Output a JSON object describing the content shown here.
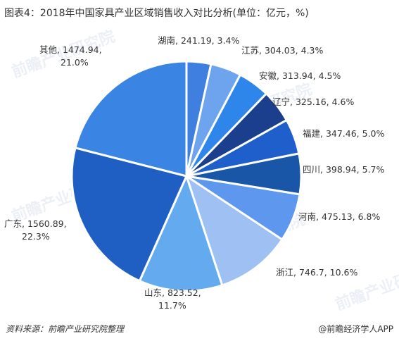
{
  "title": "图表4：2018年中国家具产业区域销售收入对比分析(单位：亿元，%)",
  "source": "资料来源：前瞻产业研究院整理",
  "credit": "@前瞻经济学人APP",
  "watermark": "前瞻产业研究院",
  "chart_data": {
    "type": "pie",
    "unit": "亿元",
    "slices": [
      {
        "label": "湖南",
        "value": 241.19,
        "percent": 3.4,
        "color": "#3f7fe0",
        "text": "湖南, 241.19, 3.4%"
      },
      {
        "label": "江苏",
        "value": 304.03,
        "percent": 4.3,
        "color": "#6ea3ee",
        "text": "江苏, 304.03, 4.3%"
      },
      {
        "label": "安徽",
        "value": 313.94,
        "percent": 4.5,
        "color": "#2f86ea",
        "text": "安徽, 313.94, 4.5%"
      },
      {
        "label": "辽宁",
        "value": 325.16,
        "percent": 4.6,
        "color": "#1b3f8c",
        "text": "辽宁, 325.16, 4.6%"
      },
      {
        "label": "福建",
        "value": 347.46,
        "percent": 5.0,
        "color": "#1f5fcc",
        "text": "福建, 347.46, 5.0%"
      },
      {
        "label": "四川",
        "value": 398.94,
        "percent": 5.7,
        "color": "#1a56a8",
        "text": "四川, 398.94, 5.7%"
      },
      {
        "label": "河南",
        "value": 475.13,
        "percent": 6.8,
        "color": "#5d98ee",
        "text": "河南, 475.13, 6.8%"
      },
      {
        "label": "浙江",
        "value": 746.7,
        "percent": 10.6,
        "color": "#9ec0f2",
        "text": "浙江, 746.7, 10.6%"
      },
      {
        "label": "山东",
        "value": 823.52,
        "percent": 11.7,
        "color": "#64aaee",
        "text": "山东, 823.52, 11.7%"
      },
      {
        "label": "广东",
        "value": 1560.89,
        "percent": 22.3,
        "color": "#1f5fc4",
        "text": "广东, 1560.89, 22.3%"
      },
      {
        "label": "其他",
        "value": 1474.94,
        "percent": 21.0,
        "color": "#3a84e3",
        "text": "其他, 1474.94, 21.0%"
      }
    ]
  }
}
